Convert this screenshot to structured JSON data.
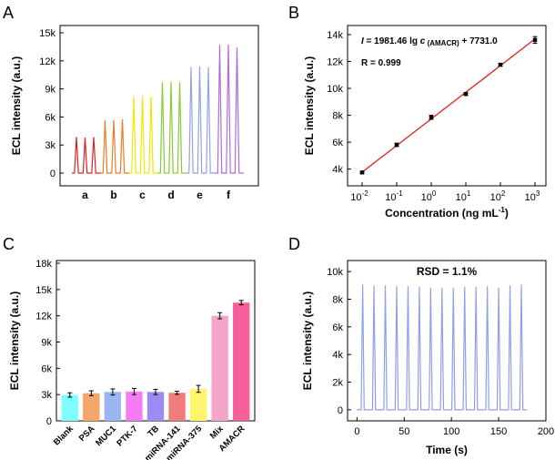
{
  "chart_data": [
    {
      "id": "A",
      "panel_label": "A",
      "type": "line",
      "description_kind": "ECL transient peaks",
      "ylabel": "ECL intensity (a.u.)",
      "ylim": [
        0,
        15000
      ],
      "yticks": [
        "0",
        "3k",
        "6k",
        "9k",
        "12k",
        "15k"
      ],
      "groups": [
        {
          "label": "a",
          "color": "#E0201F",
          "peaks": [
            3850,
            3800,
            3850
          ]
        },
        {
          "label": "b",
          "color": "#F07A22",
          "peaks": [
            5650,
            5700,
            5750
          ]
        },
        {
          "label": "c",
          "color": "#F2E600",
          "peaks": [
            8200,
            8250,
            8200
          ]
        },
        {
          "label": "d",
          "color": "#86CC39",
          "peaks": [
            9700,
            9750,
            9700
          ]
        },
        {
          "label": "e",
          "color": "#8FA4E0",
          "peaks": [
            11350,
            11400,
            11350
          ]
        },
        {
          "label": "f",
          "color": "#B06BDC",
          "peaks": [
            13700,
            13750,
            13450
          ]
        }
      ]
    },
    {
      "id": "B",
      "panel_label": "B",
      "type": "scatter",
      "xlabel": "Concentration (ng mL",
      "xlabel_sup": "-1",
      "xlabel_end": ")",
      "ylabel": "ECL intensity (a.u.)",
      "equation": {
        "pre": "I",
        "mid": " = 1981.46 lg ",
        "c": "c",
        "sub": " (AMACR)",
        "post": " + 7731.0"
      },
      "r_text": "R = 0.999",
      "xlog_range": [
        -2,
        3
      ],
      "ylim": [
        3500,
        14000
      ],
      "yticks": [
        "4k",
        "6k",
        "8k",
        "10k",
        "12k",
        "14k"
      ],
      "xticks": [
        {
          "base": "10",
          "exp": "-2"
        },
        {
          "base": "10",
          "exp": "-1"
        },
        {
          "base": "10",
          "exp": "0"
        },
        {
          "base": "10",
          "exp": "1"
        },
        {
          "base": "10",
          "exp": "2"
        },
        {
          "base": "10",
          "exp": "3"
        }
      ],
      "points_log_x": [
        -2,
        -1,
        0,
        1,
        2,
        3
      ],
      "points_y": [
        3750,
        5800,
        7850,
        9580,
        11760,
        13600
      ],
      "errors": [
        60,
        120,
        150,
        100,
        100,
        250
      ],
      "fit": {
        "slope": 1981.46,
        "intercept": 7731.0
      },
      "line_color": "#E0201F"
    },
    {
      "id": "C",
      "panel_label": "C",
      "type": "bar",
      "ylabel": "ECL intensity (a.u.)",
      "ylim": [
        0,
        18000
      ],
      "yticks": [
        "0",
        "3k",
        "6k",
        "9k",
        "12k",
        "15k",
        "18k"
      ],
      "categories": [
        "Blank",
        "PSA",
        "MUC1",
        "PTK-7",
        "TB",
        "miRNA-141",
        "miRNA-375",
        "Mix",
        "AMACR"
      ],
      "values": [
        2950,
        3150,
        3300,
        3350,
        3300,
        3200,
        3650,
        12000,
        13500
      ],
      "errors": [
        250,
        280,
        350,
        350,
        300,
        180,
        400,
        350,
        250
      ],
      "colors": [
        "#7FFFFF",
        "#F5A66A",
        "#9AB5F2",
        "#F57CF5",
        "#9C8CF2",
        "#F07C7C",
        "#FFF46A",
        "#F5A6C8",
        "#F55F9A"
      ]
    },
    {
      "id": "D",
      "panel_label": "D",
      "type": "line",
      "annotation": "RSD = 1.1%",
      "xlabel": "Time (s)",
      "ylabel": "ECL intensity (a.u.)",
      "xlim": [
        -10,
        200
      ],
      "ylim": [
        -800,
        10800
      ],
      "xticks": [
        "0",
        "50",
        "100",
        "150",
        "200"
      ],
      "yticks": [
        "0",
        "2k",
        "4k",
        "6k",
        "8k",
        "10k"
      ],
      "peak_times": [
        6,
        18,
        30,
        42,
        54,
        66,
        78,
        90,
        102,
        114,
        126,
        138,
        150,
        162,
        174
      ],
      "peak_values": [
        9050,
        9000,
        9000,
        8950,
        8950,
        8900,
        8850,
        8800,
        8850,
        8900,
        8900,
        8950,
        8850,
        9000,
        9050
      ],
      "line_color": "#8FA0E8"
    }
  ]
}
